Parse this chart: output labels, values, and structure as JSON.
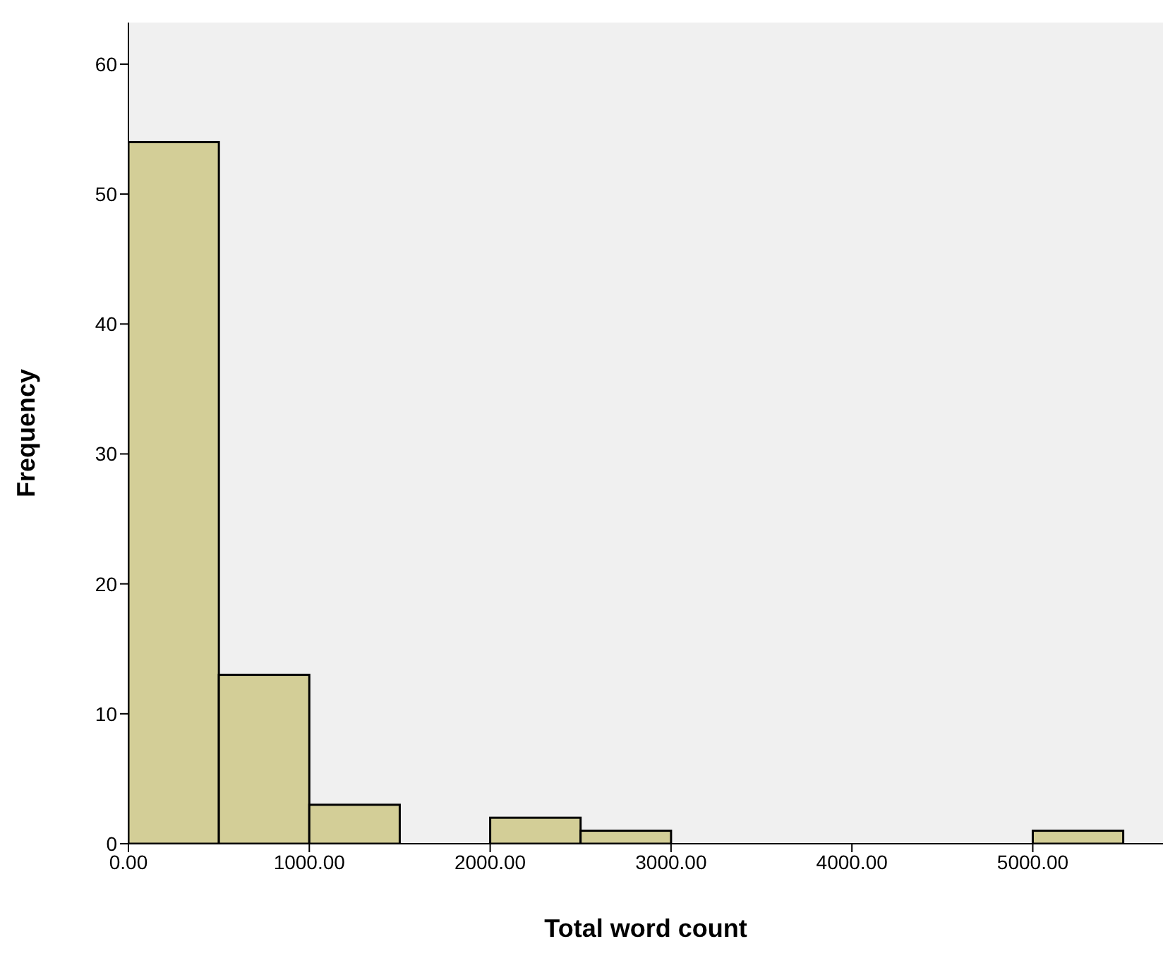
{
  "chart_data": {
    "type": "histogram",
    "xlabel": "Total word count",
    "ylabel": "Frequency",
    "bins": [
      0,
      500,
      1000,
      1500,
      2000,
      2500,
      3000,
      3500,
      4000,
      4500,
      5000,
      5500
    ],
    "values": [
      54,
      13,
      3,
      0,
      2,
      1,
      0,
      0,
      0,
      0,
      1
    ],
    "color": "#d3ce97",
    "xlim": [
      0,
      5720
    ],
    "ylim": [
      0,
      63.2
    ],
    "xticks": [
      {
        "value": 0,
        "label": "0.00"
      },
      {
        "value": 1000,
        "label": "1000.00"
      },
      {
        "value": 2000,
        "label": "2000.00"
      },
      {
        "value": 3000,
        "label": "3000.00"
      },
      {
        "value": 4000,
        "label": "4000.00"
      },
      {
        "value": 5000,
        "label": "5000.00"
      }
    ],
    "yticks": [
      0,
      10,
      20,
      30,
      40,
      50,
      60
    ],
    "grid": false,
    "legend": false
  }
}
